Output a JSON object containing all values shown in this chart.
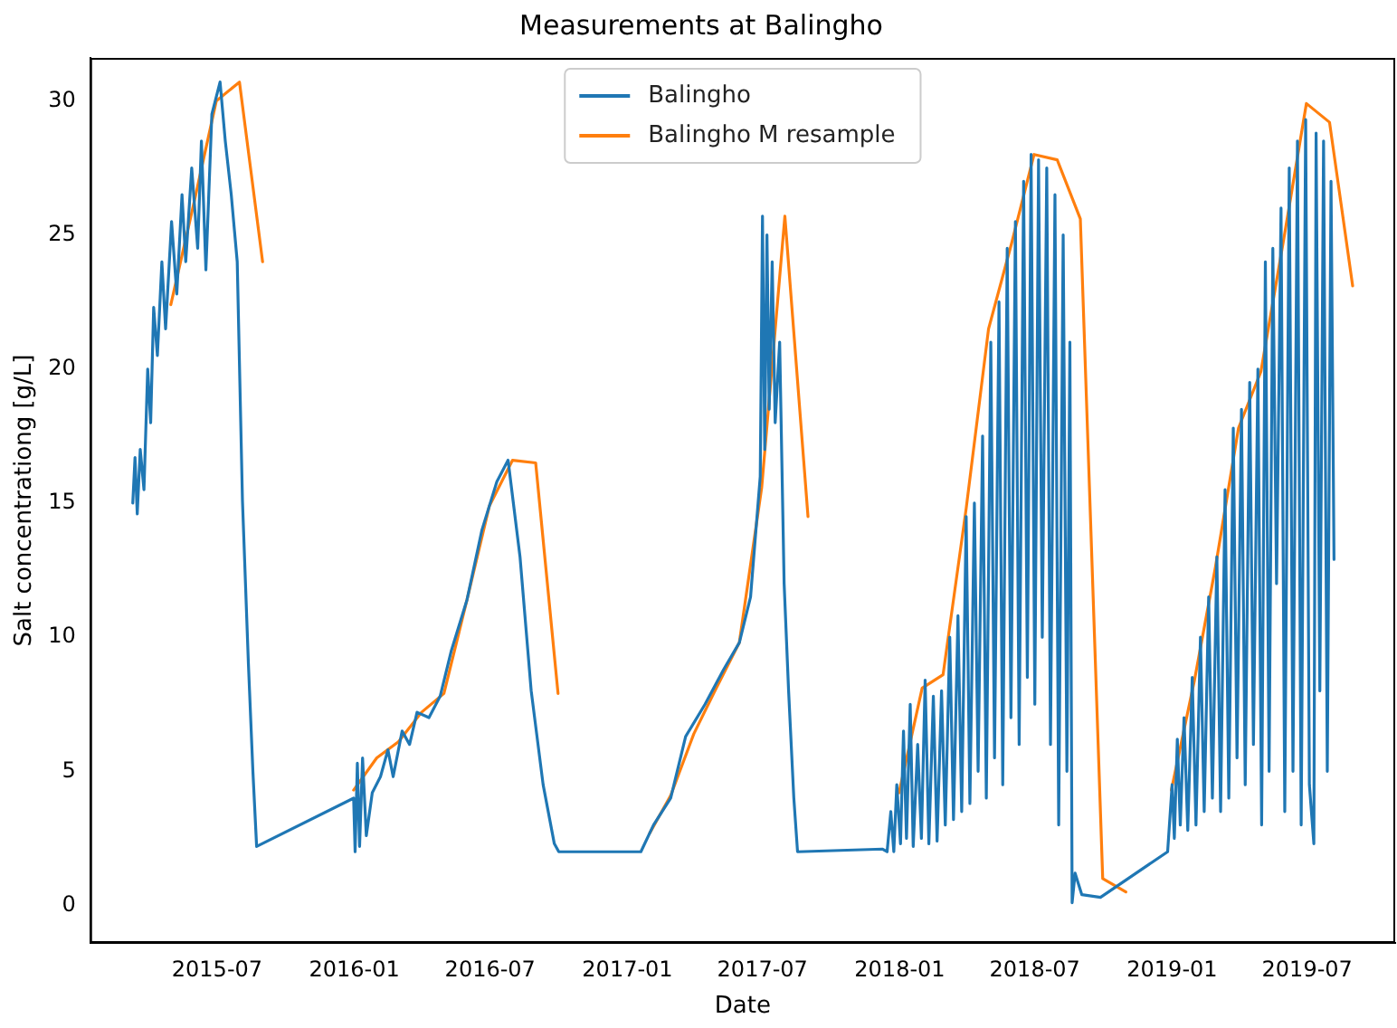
{
  "chart_data": {
    "type": "line",
    "title": "Measurements at Balingho",
    "xlabel": "Date",
    "ylabel": "Salt concentrationg [g/L]",
    "xlim": [
      "2015-01-12",
      "2019-10-27"
    ],
    "xticks": [
      "2015-07",
      "2016-01",
      "2016-07",
      "2017-01",
      "2017-07",
      "2018-01",
      "2018-07",
      "2019-01",
      "2019-07"
    ],
    "ylim": [
      -1.4,
      31.6
    ],
    "yticks": [
      0,
      5,
      10,
      15,
      20,
      25,
      30
    ],
    "grid": false,
    "legend": "top",
    "series": [
      {
        "name": "Balingho",
        "color": "#1f77b4",
        "x": [
          "2015-03-10",
          "2015-03-13",
          "2015-03-16",
          "2015-03-20",
          "2015-03-25",
          "2015-03-30",
          "2015-04-03",
          "2015-04-07",
          "2015-04-12",
          "2015-04-18",
          "2015-04-23",
          "2015-05-01",
          "2015-05-08",
          "2015-05-15",
          "2015-05-20",
          "2015-05-28",
          "2015-06-05",
          "2015-06-10",
          "2015-06-16",
          "2015-06-24",
          "2015-07-05",
          "2015-07-12",
          "2015-07-20",
          "2015-07-28",
          "2015-08-04",
          "2015-08-12",
          "2015-08-18",
          "2015-08-23",
          "2015-12-31",
          "2016-01-02",
          "2016-01-05",
          "2016-01-08",
          "2016-01-12",
          "2016-01-17",
          "2016-01-25",
          "2016-02-05",
          "2016-02-15",
          "2016-02-22",
          "2016-03-05",
          "2016-03-15",
          "2016-03-25",
          "2016-04-10",
          "2016-04-25",
          "2016-05-10",
          "2016-05-31",
          "2016-06-20",
          "2016-07-10",
          "2016-07-25",
          "2016-08-10",
          "2016-08-25",
          "2016-09-10",
          "2016-09-25",
          "2016-10-01",
          "2017-01-19",
          "2017-02-05",
          "2017-02-28",
          "2017-03-20",
          "2017-04-15",
          "2017-05-10",
          "2017-05-31",
          "2017-06-15",
          "2017-06-28",
          "2017-07-01",
          "2017-07-04",
          "2017-07-07",
          "2017-07-10",
          "2017-07-14",
          "2017-07-18",
          "2017-07-24",
          "2017-07-30",
          "2017-08-05",
          "2017-08-12",
          "2017-08-17",
          "2017-12-09",
          "2017-12-15",
          "2017-12-20",
          "2017-12-24",
          "2017-12-28",
          "2018-01-02",
          "2018-01-06",
          "2018-01-10",
          "2018-01-15",
          "2018-01-19",
          "2018-01-25",
          "2018-01-30",
          "2018-02-04",
          "2018-02-09",
          "2018-02-15",
          "2018-02-20",
          "2018-02-26",
          "2018-03-03",
          "2018-03-09",
          "2018-03-14",
          "2018-03-20",
          "2018-03-25",
          "2018-03-31",
          "2018-04-05",
          "2018-04-11",
          "2018-04-16",
          "2018-04-22",
          "2018-04-27",
          "2018-05-03",
          "2018-05-08",
          "2018-05-14",
          "2018-05-19",
          "2018-05-25",
          "2018-05-30",
          "2018-06-05",
          "2018-06-10",
          "2018-06-16",
          "2018-06-21",
          "2018-06-26",
          "2018-07-01",
          "2018-07-06",
          "2018-07-11",
          "2018-07-17",
          "2018-07-22",
          "2018-07-28",
          "2018-08-02",
          "2018-08-08",
          "2018-08-13",
          "2018-08-17",
          "2018-08-20",
          "2018-08-24",
          "2018-09-02",
          "2018-09-27",
          "2018-12-26",
          "2019-01-01",
          "2019-01-04",
          "2019-01-08",
          "2019-01-12",
          "2019-01-17",
          "2019-01-22",
          "2019-01-28",
          "2019-02-02",
          "2019-02-08",
          "2019-02-13",
          "2019-02-19",
          "2019-02-24",
          "2019-03-02",
          "2019-03-07",
          "2019-03-13",
          "2019-03-18",
          "2019-03-24",
          "2019-03-29",
          "2019-04-04",
          "2019-04-09",
          "2019-04-15",
          "2019-04-20",
          "2019-04-26",
          "2019-05-01",
          "2019-05-06",
          "2019-05-11",
          "2019-05-16",
          "2019-05-21",
          "2019-05-27",
          "2019-06-01",
          "2019-06-07",
          "2019-06-12",
          "2019-06-18",
          "2019-06-23",
          "2019-06-29",
          "2019-07-04",
          "2019-07-10",
          "2019-07-13",
          "2019-07-18",
          "2019-07-23",
          "2019-07-28",
          "2019-08-02",
          "2019-08-06"
        ],
        "values": [
          15.0,
          16.7,
          14.6,
          17.0,
          15.5,
          20.0,
          18.0,
          22.3,
          20.5,
          24.0,
          21.5,
          25.5,
          22.8,
          26.5,
          24.0,
          27.5,
          24.5,
          28.5,
          23.7,
          29.5,
          30.7,
          28.5,
          26.5,
          24.0,
          15.1,
          9.0,
          5.0,
          2.2,
          4.0,
          2.0,
          5.3,
          2.2,
          5.5,
          2.6,
          4.2,
          4.8,
          5.8,
          4.8,
          6.5,
          6.0,
          7.2,
          7.0,
          7.8,
          9.5,
          11.4,
          14.0,
          15.8,
          16.6,
          13.0,
          8.0,
          4.5,
          2.3,
          2.0,
          2.0,
          3.0,
          4.0,
          6.3,
          7.5,
          8.8,
          9.8,
          11.5,
          16.0,
          25.7,
          17.0,
          25.0,
          18.5,
          24.0,
          18.0,
          21.0,
          12.0,
          8.0,
          4.0,
          2.0,
          2.1,
          2.0,
          3.5,
          2.0,
          4.5,
          2.3,
          6.5,
          2.5,
          7.5,
          2.2,
          6.0,
          2.5,
          8.4,
          2.3,
          7.8,
          2.4,
          8.0,
          3.0,
          10.0,
          3.2,
          10.8,
          3.5,
          14.5,
          3.8,
          15.0,
          5.0,
          17.5,
          4.0,
          21.0,
          5.5,
          22.5,
          4.5,
          24.5,
          7.0,
          25.5,
          6.0,
          27.0,
          8.5,
          28.0,
          7.5,
          27.8,
          10.0,
          27.5,
          6.0,
          26.5,
          3.0,
          25.0,
          5.0,
          21.0,
          0.1,
          1.2,
          0.4,
          0.3,
          2.0,
          4.5,
          2.5,
          6.2,
          3.0,
          7.0,
          2.8,
          8.5,
          3.0,
          10.0,
          3.5,
          11.5,
          4.0,
          13.0,
          3.5,
          15.5,
          4.0,
          17.8,
          5.5,
          18.5,
          4.5,
          19.5,
          6.0,
          20.0,
          3.0,
          24.0,
          5.0,
          24.5,
          12.0,
          26.0,
          3.5,
          27.5,
          5.0,
          28.5,
          3.0,
          29.3,
          4.5,
          2.3,
          28.8,
          8.0,
          28.5,
          5.0,
          27.0,
          12.9
        ]
      },
      {
        "name": "Balingho M resample",
        "color": "#ff7f0e",
        "x": [
          "2015-04-30",
          "2015-05-31",
          "2015-06-30",
          "2015-07-31",
          "2015-08-31",
          "2015-09-30",
          "2015-12-31",
          "2016-01-31",
          "2016-02-29",
          "2016-03-31",
          "2016-04-30",
          "2016-05-31",
          "2016-06-30",
          "2016-07-31",
          "2016-08-31",
          "2016-09-30",
          "2016-10-31",
          "2017-01-31",
          "2017-02-28",
          "2017-03-31",
          "2017-04-30",
          "2017-05-31",
          "2017-06-30",
          "2017-07-31",
          "2017-08-31",
          "2017-09-30",
          "2017-12-31",
          "2018-01-31",
          "2018-02-28",
          "2018-03-31",
          "2018-04-30",
          "2018-05-31",
          "2018-06-30",
          "2018-07-31",
          "2018-08-31",
          "2018-09-30",
          "2018-10-31",
          "2018-11-30",
          "2018-12-31",
          "2019-01-31",
          "2019-02-28",
          "2019-03-31",
          "2019-04-30",
          "2019-05-31",
          "2019-06-30",
          "2019-07-31",
          "2019-08-31"
        ],
        "values": [
          22.4,
          26.2,
          30.0,
          30.7,
          24.0,
          null,
          4.3,
          5.5,
          6.1,
          7.2,
          7.9,
          11.4,
          14.9,
          16.6,
          16.5,
          7.9,
          null,
          2.7,
          4.1,
          6.4,
          8.1,
          9.8,
          15.6,
          25.7,
          14.5,
          null,
          4.2,
          8.1,
          8.6,
          14.8,
          21.5,
          24.7,
          28.0,
          27.8,
          25.6,
          1.0,
          0.5,
          null,
          4.3,
          8.4,
          12.6,
          17.8,
          19.9,
          24.9,
          29.9,
          29.2,
          23.1
        ]
      }
    ]
  }
}
